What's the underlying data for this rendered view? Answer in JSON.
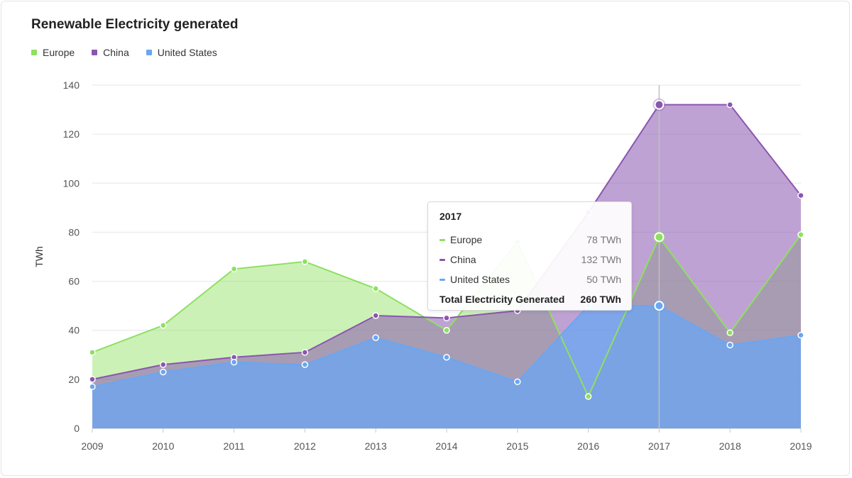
{
  "chart_data": {
    "type": "area",
    "title": "Renewable Electricity generated",
    "ylabel": "TWh",
    "xlabel": "",
    "ylim": [
      0,
      140
    ],
    "yticks": [
      0,
      20,
      40,
      60,
      80,
      100,
      120,
      140
    ],
    "categories": [
      "2009",
      "2010",
      "2011",
      "2012",
      "2013",
      "2014",
      "2015",
      "2016",
      "2017",
      "2018",
      "2019"
    ],
    "series": [
      {
        "name": "Europe",
        "color": "#8ee060",
        "values": [
          31,
          42,
          65,
          68,
          57,
          40,
          76,
          13,
          78,
          39,
          79
        ]
      },
      {
        "name": "China",
        "color": "#8a56b0",
        "values": [
          20,
          26,
          29,
          31,
          46,
          45,
          48,
          88,
          132,
          132,
          95
        ]
      },
      {
        "name": "United States",
        "color": "#6aa6f2",
        "values": [
          17,
          23,
          27,
          26,
          37,
          29,
          19,
          50,
          50,
          34,
          38
        ]
      }
    ],
    "grid": true,
    "legend_position": "top-left",
    "highlight": {
      "category": "2017"
    }
  },
  "tooltip": {
    "year": "2017",
    "rows": [
      {
        "label": "Europe",
        "value": "78 TWh",
        "color": "#8ee060"
      },
      {
        "label": "China",
        "value": "132 TWh",
        "color": "#8a56b0"
      },
      {
        "label": "United States",
        "value": "50 TWh",
        "color": "#6aa6f2"
      }
    ],
    "total_label": "Total Electricity Generated",
    "total_value": "260 TWh"
  }
}
